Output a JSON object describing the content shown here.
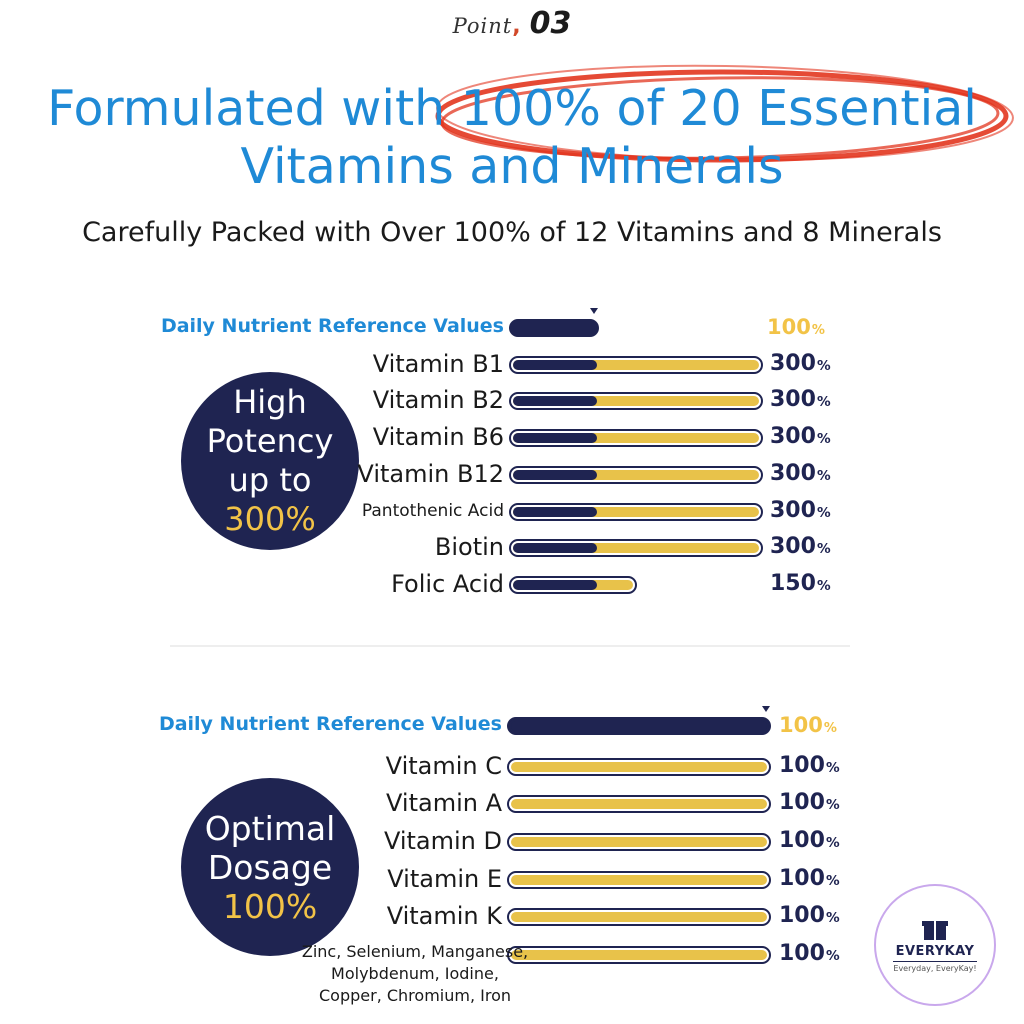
{
  "header": {
    "point_word": "Point",
    "point_number": "03",
    "headline_line1": "Formulated with 100% of 20 Essential",
    "headline_line2": "Vitamins and Minerals",
    "subhead": "Carefully Packed with Over 100% of 12 Vitamins and 8 Minerals",
    "highlight_color": "#e2361f"
  },
  "badges": {
    "high": {
      "line1": "High",
      "line2": "Potency",
      "line3": "up to",
      "value": "300%"
    },
    "optimal": {
      "line1": "Optimal",
      "line2": "Dosage",
      "value": "100%"
    }
  },
  "colors": {
    "navy": "#1f2451",
    "gold": "#e8c24a",
    "blue": "#1f8ad6"
  },
  "logo": {
    "name": "EVERYKAY",
    "tagline": "Everyday, EveryKay!"
  },
  "chart_data": [
    {
      "type": "bar",
      "orientation": "horizontal",
      "reference": {
        "label": "Daily Nutrient Reference Values",
        "value": 100,
        "display": "100"
      },
      "categories": [
        "Vitamin B1",
        "Vitamin B2",
        "Vitamin B6",
        "Vitamin B12",
        "Pantothenic Acid",
        "Biotin",
        "Folic Acid"
      ],
      "values": [
        300,
        300,
        300,
        300,
        300,
        300,
        150
      ],
      "value_labels": [
        "300",
        "300",
        "300",
        "300",
        "300",
        "300",
        "150"
      ],
      "unit": "%",
      "xlim": [
        0,
        300
      ]
    },
    {
      "type": "bar",
      "orientation": "horizontal",
      "reference": {
        "label": "Daily Nutrient Reference Values",
        "value": 100,
        "display": "100"
      },
      "categories": [
        "Vitamin C",
        "Vitamin A",
        "Vitamin D",
        "Vitamin E",
        "Vitamin K",
        "Zinc, Selenium, Manganese, Molybdenum, Iodine, Copper, Chromium, Iron"
      ],
      "values": [
        100,
        100,
        100,
        100,
        100,
        100
      ],
      "value_labels": [
        "100",
        "100",
        "100",
        "100",
        "100",
        "100"
      ],
      "unit": "%",
      "xlim": [
        0,
        100
      ]
    }
  ]
}
